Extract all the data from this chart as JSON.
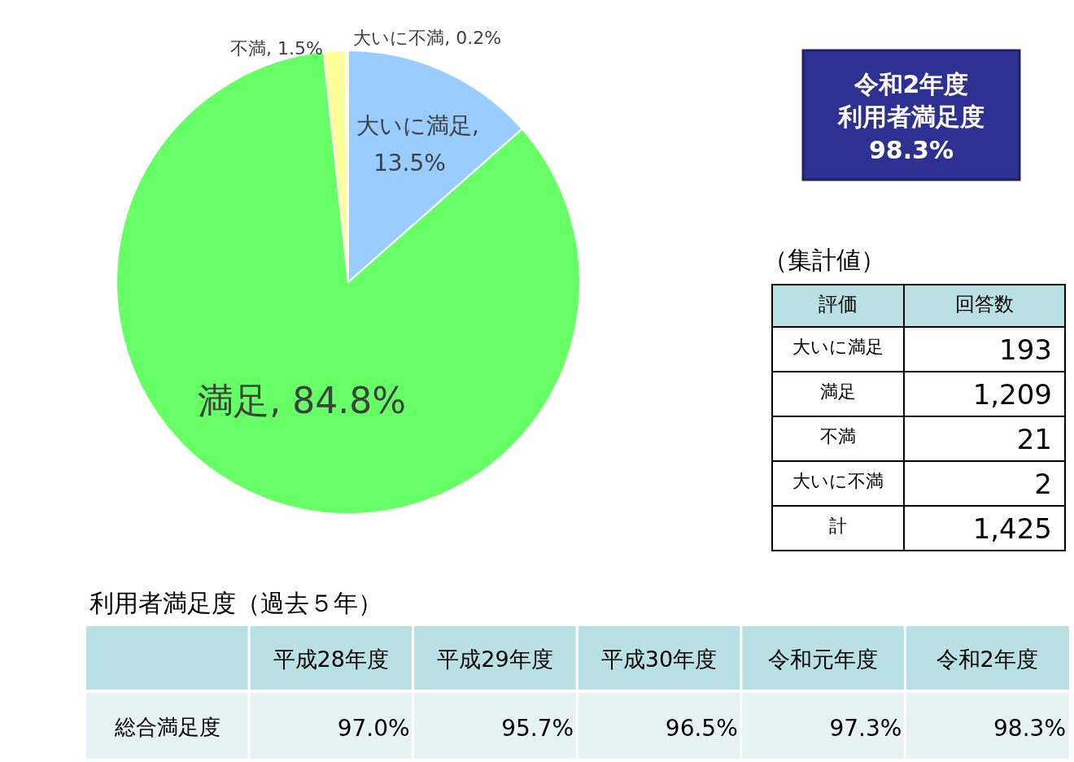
{
  "chart_data": [
    {
      "type": "pie",
      "categories": [
        "大いに満足",
        "満足",
        "不満",
        "大いに不満"
      ],
      "values": [
        13.5,
        84.8,
        1.5,
        0.2
      ],
      "colors": [
        "#99ccff",
        "#66ff66",
        "#ffff99",
        "#ffffcc"
      ],
      "value_labels": [
        ", 13.5%",
        ", 84.8%",
        ", 1.5%",
        ", 0.2%"
      ]
    },
    {
      "type": "other",
      "annotations": [
        "令和2年度",
        "利用者満足度",
        "98.3%"
      ]
    },
    {
      "type": "other",
      "title": "（集計値）",
      "annotations": [
        "評価",
        "回答数"
      ],
      "categories": [
        "大いに満足",
        "満足",
        "不満",
        "大いに不満",
        "計"
      ],
      "values": [
        193,
        1209,
        21,
        2,
        1425
      ],
      "value_labels": [
        "193",
        "1,209",
        "21",
        "2",
        "1,425"
      ]
    },
    {
      "type": "other",
      "title": "利用者満足度（過去５年）",
      "annotations": [
        "総合満足度"
      ],
      "categories": [
        "平成28年度",
        "平成29年度",
        "平成30年度",
        "令和元年度",
        "令和2年度"
      ],
      "values": [
        97.0,
        95.7,
        96.5,
        97.3,
        98.3
      ],
      "value_labels": [
        "97.0%",
        "95.7%",
        "96.5%",
        "97.3%",
        "98.3%"
      ]
    }
  ]
}
